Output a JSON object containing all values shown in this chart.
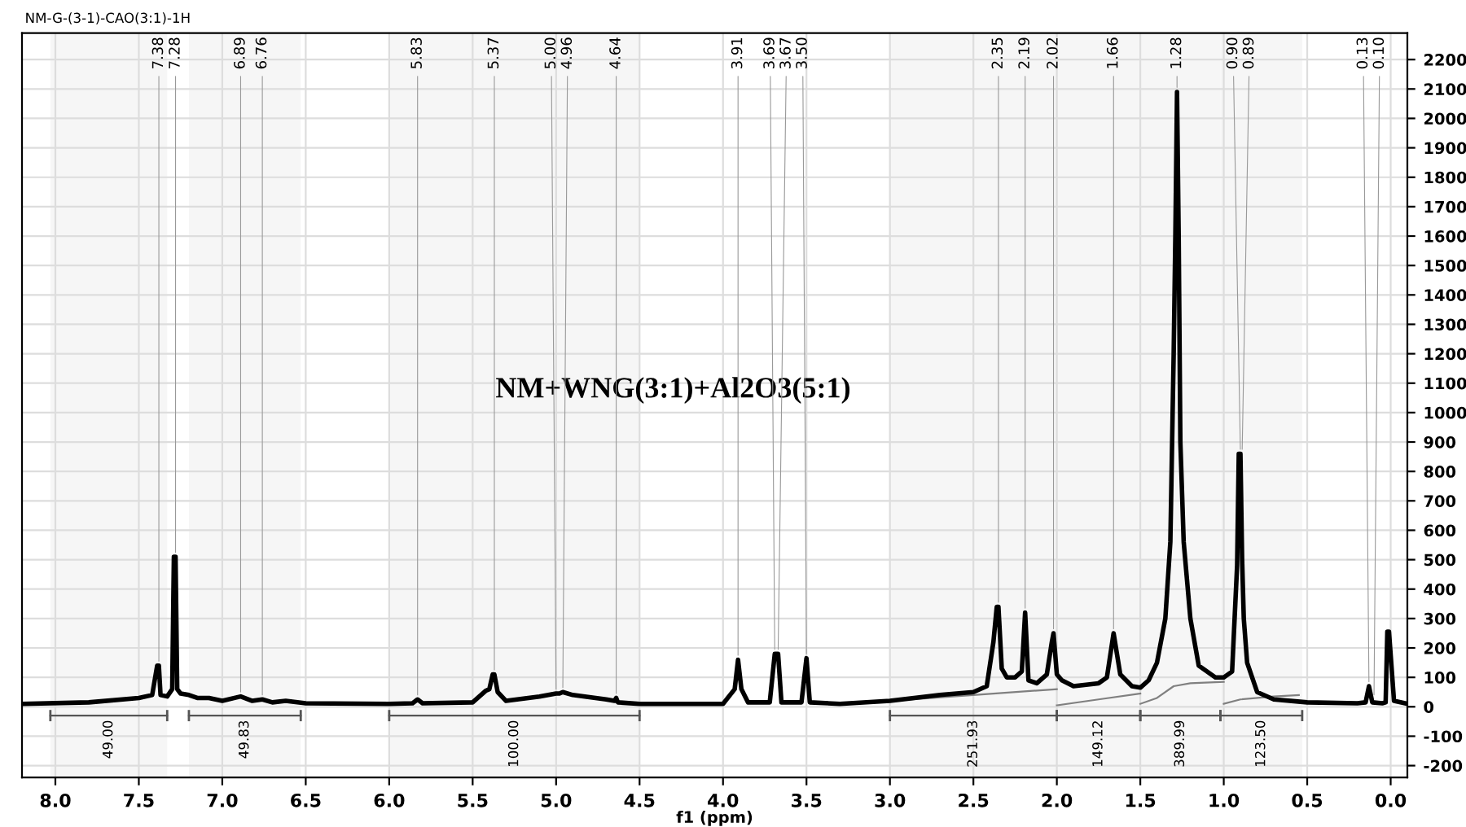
{
  "chart_data": {
    "type": "line",
    "xlabel": "f1 (ppm)",
    "xlim": [
      8.2,
      -0.1
    ],
    "ylim": [
      -240,
      2290
    ],
    "xticks": [
      {
        "value": 8,
        "label": "8.0"
      },
      7.5,
      {
        "value": 7,
        "label": "7.0"
      },
      6.5,
      {
        "value": 6,
        "label": "6.0"
      },
      5.5,
      {
        "value": 5,
        "label": "5.0"
      },
      4.5,
      {
        "value": 4,
        "label": "4.0"
      },
      3.5,
      {
        "value": 3,
        "label": "3.0"
      },
      2.5,
      {
        "value": 2,
        "label": "2.0"
      },
      1.5,
      {
        "value": 1,
        "label": "1.0"
      },
      0.5,
      {
        "value": 0,
        "label": "0.0"
      }
    ],
    "yticks": [
      -200,
      -100,
      0,
      100,
      200,
      300,
      400,
      500,
      600,
      700,
      800,
      900,
      1000,
      1100,
      1200,
      1300,
      1400,
      1500,
      1600,
      1700,
      1800,
      1900,
      2000,
      2100,
      2200
    ],
    "grid": true,
    "marker": "none",
    "line_style": "solid",
    "series": [
      {
        "color": "#000000",
        "x": [
          8.2,
          7.8,
          7.5,
          7.42,
          7.39,
          7.38,
          7.37,
          7.33,
          7.3,
          7.29,
          7.28,
          7.27,
          7.25,
          7.2,
          7.15,
          7.08,
          7.0,
          6.89,
          6.82,
          6.76,
          6.7,
          6.62,
          6.5,
          6.0,
          5.86,
          5.83,
          5.8,
          5.5,
          5.42,
          5.4,
          5.38,
          5.37,
          5.35,
          5.3,
          5.1,
          5.0,
          4.98,
          4.96,
          4.9,
          4.7,
          4.65,
          4.64,
          4.63,
          4.5,
          4.0,
          3.93,
          3.91,
          3.89,
          3.85,
          3.72,
          3.69,
          3.67,
          3.65,
          3.53,
          3.5,
          3.48,
          3.3,
          3.0,
          2.7,
          2.5,
          2.42,
          2.38,
          2.36,
          2.35,
          2.33,
          2.3,
          2.25,
          2.21,
          2.19,
          2.17,
          2.12,
          2.06,
          2.03,
          2.02,
          2.0,
          1.97,
          1.9,
          1.75,
          1.7,
          1.66,
          1.62,
          1.55,
          1.5,
          1.45,
          1.4,
          1.35,
          1.32,
          1.3,
          1.29,
          1.28,
          1.27,
          1.26,
          1.24,
          1.2,
          1.15,
          1.05,
          1.0,
          0.95,
          0.92,
          0.91,
          0.9,
          0.89,
          0.88,
          0.86,
          0.8,
          0.7,
          0.5,
          0.2,
          0.15,
          0.13,
          0.11,
          0.05,
          0.03,
          0.02,
          0.01,
          -0.02,
          -0.1
        ],
        "values": [
          10,
          15,
          30,
          40,
          140,
          140,
          40,
          35,
          60,
          510,
          510,
          60,
          45,
          40,
          30,
          30,
          20,
          35,
          20,
          25,
          15,
          20,
          12,
          10,
          12,
          25,
          12,
          15,
          55,
          60,
          110,
          110,
          50,
          20,
          35,
          45,
          45,
          50,
          40,
          25,
          20,
          30,
          15,
          10,
          10,
          60,
          160,
          60,
          15,
          15,
          180,
          180,
          15,
          15,
          165,
          15,
          10,
          20,
          40,
          50,
          70,
          220,
          340,
          340,
          130,
          100,
          100,
          120,
          320,
          90,
          80,
          110,
          220,
          250,
          110,
          90,
          70,
          80,
          100,
          250,
          110,
          70,
          65,
          90,
          150,
          300,
          560,
          1200,
          1600,
          2090,
          1600,
          900,
          560,
          300,
          140,
          100,
          100,
          120,
          480,
          860,
          860,
          500,
          300,
          150,
          50,
          25,
          15,
          12,
          15,
          70,
          15,
          12,
          15,
          255,
          255,
          20,
          10
        ]
      },
      {
        "color": "#808080",
        "x": [
          3.0,
          2.5,
          2.0
        ],
        "values": [
          20,
          40,
          60
        ]
      },
      {
        "color": "#808080",
        "x": [
          2.0,
          1.75,
          1.5
        ],
        "values": [
          5,
          25,
          45
        ]
      },
      {
        "color": "#808080",
        "x": [
          1.5,
          1.4,
          1.3,
          1.2,
          1.0
        ],
        "values": [
          10,
          30,
          70,
          80,
          85
        ]
      },
      {
        "color": "#808080",
        "x": [
          1.0,
          0.9,
          0.7,
          0.55
        ],
        "values": [
          10,
          25,
          35,
          40
        ]
      }
    ],
    "annotations": [
      "NM+WNG(3:1)+Al2O3(5:1)",
      "NM-G-(3-1)-CAO(3:1)-1H",
      {
        "text": "7.38",
        "x": 7.38,
        "y": 140
      },
      {
        "text": "7.28",
        "x": 7.28,
        "y": 510
      },
      {
        "text": "6.89",
        "x": 6.89,
        "y": 35
      },
      {
        "text": "6.76",
        "x": 6.76,
        "y": 25
      },
      {
        "text": "5.83",
        "x": 5.83,
        "y": 25
      },
      {
        "text": "5.37",
        "x": 5.37,
        "y": 110
      },
      {
        "text": "5.00",
        "x": 5.0,
        "y": 45
      },
      {
        "text": "4.96",
        "x": 4.96,
        "y": 50
      },
      {
        "text": "4.64",
        "x": 4.64,
        "y": 30
      },
      {
        "text": "3.91",
        "x": 3.91,
        "y": 160
      },
      {
        "text": "3.69",
        "x": 3.69,
        "y": 180
      },
      {
        "text": "3.67",
        "x": 3.67,
        "y": 180
      },
      {
        "text": "3.50",
        "x": 3.5,
        "y": 165
      },
      {
        "text": "2.35",
        "x": 2.35,
        "y": 340
      },
      {
        "text": "2.19",
        "x": 2.19,
        "y": 320
      },
      {
        "text": "2.02",
        "x": 2.02,
        "y": 250
      },
      {
        "text": "1.66",
        "x": 1.66,
        "y": 250
      },
      {
        "text": "1.28",
        "x": 1.28,
        "y": 2090
      },
      {
        "text": "0.90",
        "x": 0.9,
        "y": 860
      },
      {
        "text": "0.89",
        "x": 0.89,
        "y": 860
      },
      {
        "text": "0.13",
        "x": 0.13,
        "y": 70
      },
      {
        "text": "0.10",
        "x": 0.1,
        "y": 25
      }
    ],
    "bands": [
      {
        "axis": "x",
        "from": 8.03,
        "to": 7.33,
        "label": "49.00"
      },
      {
        "axis": "x",
        "from": 7.2,
        "to": 6.53,
        "label": "49.83"
      },
      {
        "axis": "x",
        "from": 6.0,
        "to": 4.5,
        "label": "100.00"
      },
      {
        "axis": "x",
        "from": 3.0,
        "to": 2.0,
        "label": "251.93"
      },
      {
        "axis": "x",
        "from": 2.0,
        "to": 1.5,
        "label": "149.12"
      },
      {
        "axis": "x",
        "from": 1.5,
        "to": 1.02,
        "label": "389.99"
      },
      {
        "axis": "x",
        "from": 1.02,
        "to": 0.53,
        "label": "123.50"
      }
    ]
  }
}
